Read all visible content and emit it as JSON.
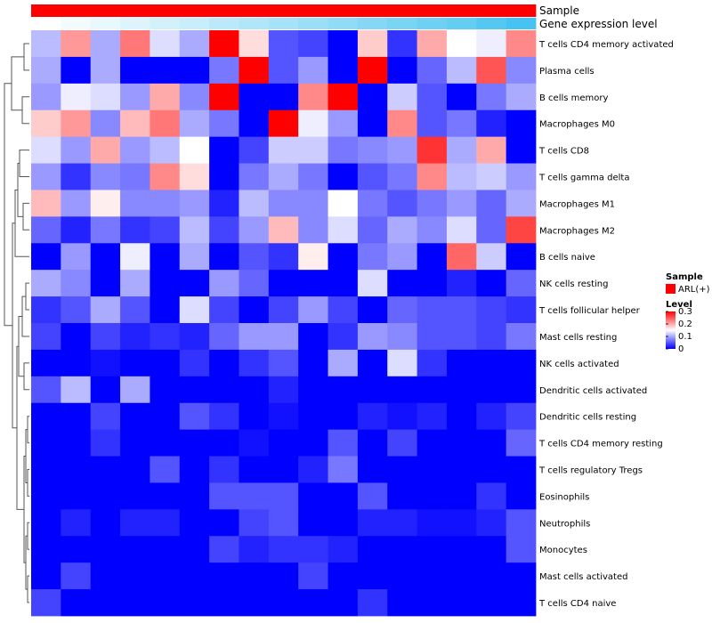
{
  "chart_data": {
    "type": "heatmap",
    "annotations": {
      "sample_label": "Sample",
      "expression_label": "Gene expression level",
      "sample_color": "#ff0000",
      "expression_low_color": "#ffffff",
      "expression_high_color": "#46c3f0"
    },
    "legend": {
      "sample_title": "Sample",
      "sample_entry": "ARL(+)",
      "level_title": "Level",
      "ticks": [
        "0.3",
        "0.2",
        "0.1",
        "0"
      ],
      "tick_values": [
        0.3,
        0.2,
        0.1,
        0
      ]
    },
    "color_scale": {
      "min": 0,
      "mid": 0.15,
      "max": 0.3,
      "low": "#0000ff",
      "mid_color": "#ffffff",
      "high": "#ff0000"
    },
    "rows": [
      "T cells CD4 memory activated",
      "Plasma cells",
      "B cells memory",
      "Macrophages M0",
      "T cells CD8",
      "T cells gamma delta",
      "Macrophages M1",
      "Macrophages M2",
      "B cells naive",
      "NK cells resting",
      "T cells follicular helper",
      "Mast cells resting",
      "NK cells activated",
      "Dendritic cells activated",
      "Dendritic cells resting",
      "T cells CD4 memory resting",
      "T cells regulatory  Tregs",
      "Eosinophils",
      "Neutrophils",
      "Monocytes",
      "Mast cells activated",
      "T cells CD4 naive"
    ],
    "expression_levels": [
      0.0,
      0.06,
      0.12,
      0.18,
      0.24,
      0.3,
      0.36,
      0.42,
      0.48,
      0.54,
      0.6,
      0.66,
      0.72,
      0.78,
      0.84,
      0.92,
      1.0
    ],
    "values": [
      [
        0.11,
        0.21,
        0.1,
        0.23,
        0.13,
        0.1,
        0.3,
        0.17,
        0.05,
        0.04,
        0.0,
        0.18,
        0.03,
        0.2,
        0.15,
        0.14,
        0.22
      ],
      [
        0.1,
        0.0,
        0.1,
        0.0,
        0.0,
        0.0,
        0.07,
        0.3,
        0.05,
        0.09,
        0.0,
        0.3,
        0.0,
        0.06,
        0.11,
        0.25,
        0.08
      ],
      [
        0.09,
        0.14,
        0.13,
        0.09,
        0.2,
        0.08,
        0.3,
        0.0,
        0.0,
        0.22,
        0.3,
        0.0,
        0.12,
        0.05,
        0.0,
        0.07,
        0.1
      ],
      [
        0.18,
        0.21,
        0.08,
        0.19,
        0.23,
        0.1,
        0.07,
        0.0,
        0.3,
        0.14,
        0.09,
        0.0,
        0.22,
        0.05,
        0.07,
        0.02,
        0.0
      ],
      [
        0.13,
        0.09,
        0.2,
        0.09,
        0.11,
        0.15,
        0.0,
        0.04,
        0.12,
        0.12,
        0.07,
        0.08,
        0.09,
        0.27,
        0.1,
        0.2,
        0.0
      ],
      [
        0.09,
        0.03,
        0.08,
        0.07,
        0.22,
        0.17,
        0.0,
        0.07,
        0.1,
        0.07,
        0.0,
        0.05,
        0.07,
        0.22,
        0.11,
        0.12,
        0.09
      ],
      [
        0.19,
        0.09,
        0.16,
        0.08,
        0.08,
        0.09,
        0.02,
        0.11,
        0.08,
        0.08,
        0.15,
        0.07,
        0.05,
        0.07,
        0.09,
        0.06,
        0.1
      ],
      [
        0.06,
        0.02,
        0.07,
        0.03,
        0.04,
        0.11,
        0.04,
        0.09,
        0.19,
        0.08,
        0.13,
        0.06,
        0.1,
        0.08,
        0.13,
        0.06,
        0.26
      ],
      [
        0.0,
        0.09,
        0.0,
        0.14,
        0.0,
        0.1,
        0.0,
        0.05,
        0.03,
        0.16,
        0.0,
        0.07,
        0.09,
        0.0,
        0.24,
        0.12,
        0.0
      ],
      [
        0.1,
        0.08,
        0.0,
        0.1,
        0.0,
        0.0,
        0.09,
        0.06,
        0.0,
        0.0,
        0.0,
        0.13,
        0.0,
        0.0,
        0.02,
        0.0,
        0.06
      ],
      [
        0.03,
        0.05,
        0.1,
        0.05,
        0.0,
        0.13,
        0.04,
        0.0,
        0.04,
        0.09,
        0.04,
        0.0,
        0.06,
        0.05,
        0.05,
        0.04,
        0.03
      ],
      [
        0.04,
        0.0,
        0.04,
        0.02,
        0.03,
        0.02,
        0.06,
        0.09,
        0.09,
        0.0,
        0.03,
        0.09,
        0.08,
        0.05,
        0.05,
        0.04,
        0.07
      ],
      [
        0.0,
        0.0,
        0.01,
        0.0,
        0.0,
        0.03,
        0.0,
        0.03,
        0.05,
        0.0,
        0.1,
        0.0,
        0.13,
        0.03,
        0.0,
        0.0,
        0.0
      ],
      [
        0.05,
        0.11,
        0.0,
        0.1,
        0.0,
        0.0,
        0.0,
        0.0,
        0.02,
        0.0,
        0.0,
        0.0,
        0.0,
        0.0,
        0.0,
        0.0,
        0.0
      ],
      [
        0.0,
        0.0,
        0.04,
        0.0,
        0.0,
        0.05,
        0.03,
        0.0,
        0.01,
        0.0,
        0.0,
        0.02,
        0.01,
        0.02,
        0.0,
        0.02,
        0.04
      ],
      [
        0.0,
        0.0,
        0.03,
        0.0,
        0.0,
        0.0,
        0.0,
        0.01,
        0.0,
        0.0,
        0.05,
        0.0,
        0.04,
        0.0,
        0.0,
        0.0,
        0.06
      ],
      [
        0.0,
        0.0,
        0.0,
        0.0,
        0.05,
        0.0,
        0.03,
        0.0,
        0.0,
        0.02,
        0.07,
        0.0,
        0.0,
        0.0,
        0.0,
        0.0,
        0.0
      ],
      [
        0.0,
        0.0,
        0.0,
        0.0,
        0.0,
        0.0,
        0.05,
        0.05,
        0.05,
        0.0,
        0.0,
        0.05,
        0.0,
        0.0,
        0.0,
        0.03,
        0.0
      ],
      [
        0.0,
        0.02,
        0.0,
        0.02,
        0.02,
        0.0,
        0.0,
        0.04,
        0.05,
        0.0,
        0.0,
        0.02,
        0.02,
        0.01,
        0.01,
        0.02,
        0.05
      ],
      [
        0.0,
        0.0,
        0.0,
        0.0,
        0.0,
        0.0,
        0.04,
        0.02,
        0.03,
        0.03,
        0.02,
        0.0,
        0.0,
        0.0,
        0.0,
        0.0,
        0.05
      ],
      [
        0.0,
        0.04,
        0.0,
        0.0,
        0.0,
        0.0,
        0.0,
        0.0,
        0.0,
        0.04,
        0.0,
        0.0,
        0.0,
        0.0,
        0.0,
        0.0,
        0.0
      ],
      [
        0.04,
        0.0,
        0.0,
        0.0,
        0.0,
        0.0,
        0.0,
        0.0,
        0.0,
        0.0,
        0.0,
        0.03,
        0.0,
        0.0,
        0.0,
        0.0,
        0.0
      ]
    ]
  }
}
